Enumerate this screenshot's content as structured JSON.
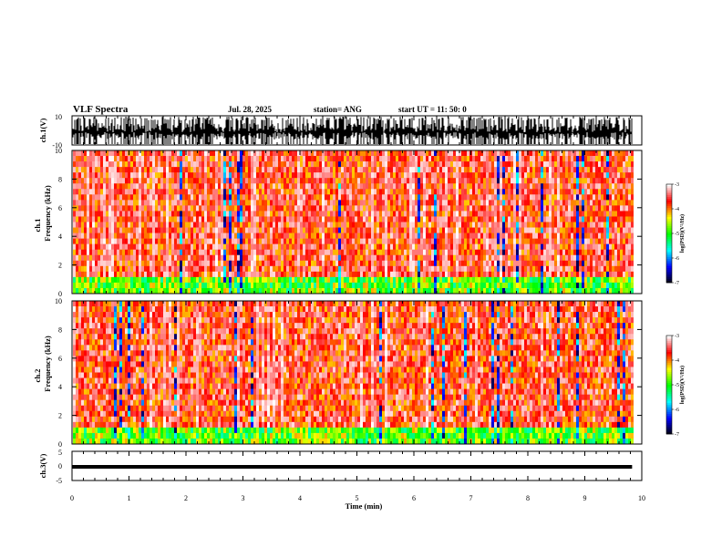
{
  "header": {
    "title": "VLF Spectra",
    "date": "Jul. 28, 2025",
    "station": "station= ANG",
    "start": "start UT =  11: 50: 0"
  },
  "chart_data": [
    {
      "type": "line",
      "panel": "waveform-ch1",
      "ylabel": "ch.1(V)",
      "ylim": [
        -10,
        10
      ],
      "yticks": [
        "10",
        "-10"
      ],
      "color": "#000000"
    },
    {
      "type": "heatmap",
      "panel": "spectrogram-ch1",
      "ylabel": "ch.1 Frequency (kHz)",
      "ylim": [
        0,
        10
      ],
      "yticks": [
        "0",
        "2",
        "4",
        "6",
        "8",
        "10"
      ],
      "colorbar": {
        "label": "log(PSD)(V²/Hz)",
        "range": [
          -7,
          -3
        ],
        "ticks": [
          "-3",
          "-4",
          "-5",
          "-6",
          "-7"
        ]
      }
    },
    {
      "type": "heatmap",
      "panel": "spectrogram-ch2",
      "ylabel": "ch.2 Frequency (kHz)",
      "ylim": [
        0,
        10
      ],
      "yticks": [
        "0",
        "2",
        "4",
        "6",
        "8",
        "10"
      ],
      "colorbar": {
        "label": "log(PSD)(V²/Hz)",
        "range": [
          -7,
          -3
        ],
        "ticks": [
          "-3",
          "-4",
          "-5",
          "-6",
          "-7"
        ]
      }
    },
    {
      "type": "line",
      "panel": "waveform-ch3",
      "ylabel": "ch.3(V)",
      "ylim": [
        -5,
        5
      ],
      "yticks": [
        "5",
        "0",
        "-5"
      ],
      "x": [
        0,
        9.83
      ],
      "y": [
        -0.3,
        -0.3
      ],
      "color": "#000000"
    }
  ],
  "xaxis": {
    "label": "Time (min)",
    "range": [
      0,
      10
    ],
    "ticks": [
      "0",
      "1",
      "2",
      "3",
      "4",
      "5",
      "6",
      "7",
      "8",
      "9",
      "10"
    ],
    "data_end": 9.83
  },
  "colors": {
    "colormap": [
      "#000000",
      "#0000ff",
      "#00ffff",
      "#00ff00",
      "#ffff00",
      "#ff0000",
      "#ffffff"
    ]
  }
}
